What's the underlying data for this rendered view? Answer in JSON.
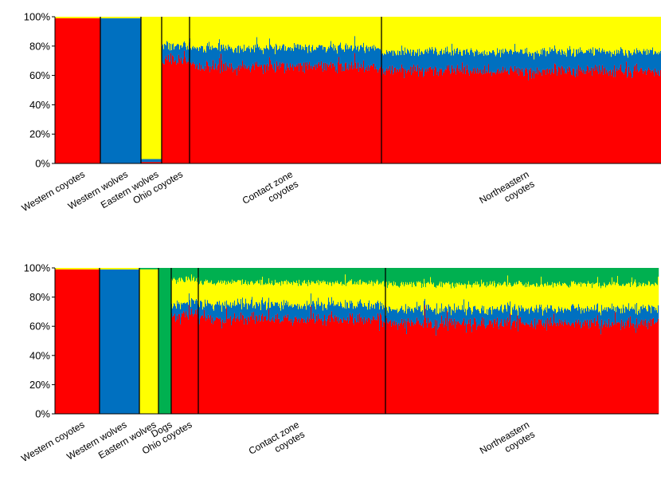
{
  "chart_data": [
    {
      "type": "bar",
      "stacked": true,
      "ylim": [
        0,
        100
      ],
      "yticks": [
        "0%",
        "20%",
        "40%",
        "60%",
        "80%",
        "100%"
      ],
      "colors": [
        "#ff0000",
        "#0070c0",
        "#ffff00"
      ],
      "groups": [
        {
          "label": [
            "Western coyotes"
          ],
          "width": 57,
          "means": [
            0.99,
            0.0,
            0.01
          ],
          "jitter": [
            0.0,
            0.0,
            0.0
          ]
        },
        {
          "label": [
            "Western wolves"
          ],
          "width": 51,
          "means": [
            0.0,
            0.99,
            0.01
          ],
          "jitter": [
            0.0,
            0.0,
            0.0
          ]
        },
        {
          "label": [
            "Eastern wolves"
          ],
          "width": 26,
          "means": [
            0.01,
            0.02,
            0.97
          ],
          "jitter": [
            0.0,
            0.0,
            0.0
          ]
        },
        {
          "label": [
            "Ohio coyotes"
          ],
          "width": 35,
          "means": [
            0.7,
            0.1,
            0.2
          ],
          "jitter": [
            0.06,
            0.04,
            0.04
          ]
        },
        {
          "label": [
            "Contact zone",
            "coyotes"
          ],
          "width": 241,
          "means": [
            0.66,
            0.13,
            0.21
          ],
          "jitter": [
            0.05,
            0.03,
            0.03
          ]
        },
        {
          "label": [
            "Northeastern",
            "coyotes"
          ],
          "width": 352,
          "means": [
            0.63,
            0.13,
            0.24
          ],
          "jitter": [
            0.05,
            0.03,
            0.03
          ]
        }
      ]
    },
    {
      "type": "bar",
      "stacked": true,
      "ylim": [
        0,
        100
      ],
      "yticks": [
        "0%",
        "20%",
        "40%",
        "60%",
        "80%",
        "100%"
      ],
      "colors": [
        "#ff0000",
        "#0070c0",
        "#ffff00",
        "#00b050"
      ],
      "groups": [
        {
          "label": [
            "Western coyotes"
          ],
          "width": 56,
          "means": [
            0.99,
            0.0,
            0.01,
            0.0
          ],
          "jitter": [
            0.0,
            0.0,
            0.0,
            0.0
          ]
        },
        {
          "label": [
            "Western wolves"
          ],
          "width": 50,
          "means": [
            0.0,
            0.99,
            0.01,
            0.0
          ],
          "jitter": [
            0.0,
            0.0,
            0.0,
            0.0
          ]
        },
        {
          "label": [
            "Eastern wolves"
          ],
          "width": 24,
          "means": [
            0.0,
            0.0,
            0.99,
            0.01
          ],
          "jitter": [
            0.0,
            0.0,
            0.0,
            0.0
          ]
        },
        {
          "label": [
            "Dogs"
          ],
          "width": 16,
          "means": [
            0.0,
            0.0,
            0.0,
            1.0
          ],
          "jitter": [
            0.0,
            0.0,
            0.0,
            0.0
          ]
        },
        {
          "label": [
            "Ohio coyotes"
          ],
          "width": 34,
          "means": [
            0.68,
            0.08,
            0.16,
            0.08
          ],
          "jitter": [
            0.05,
            0.03,
            0.03,
            0.02
          ]
        },
        {
          "label": [
            "Contact zone",
            "coyotes"
          ],
          "width": 235,
          "means": [
            0.65,
            0.1,
            0.15,
            0.1
          ],
          "jitter": [
            0.05,
            0.03,
            0.03,
            0.02
          ]
        },
        {
          "label": [
            "Northeastern",
            "coyotes"
          ],
          "width": 343,
          "means": [
            0.62,
            0.1,
            0.17,
            0.11
          ],
          "jitter": [
            0.05,
            0.03,
            0.03,
            0.02
          ]
        }
      ]
    }
  ]
}
